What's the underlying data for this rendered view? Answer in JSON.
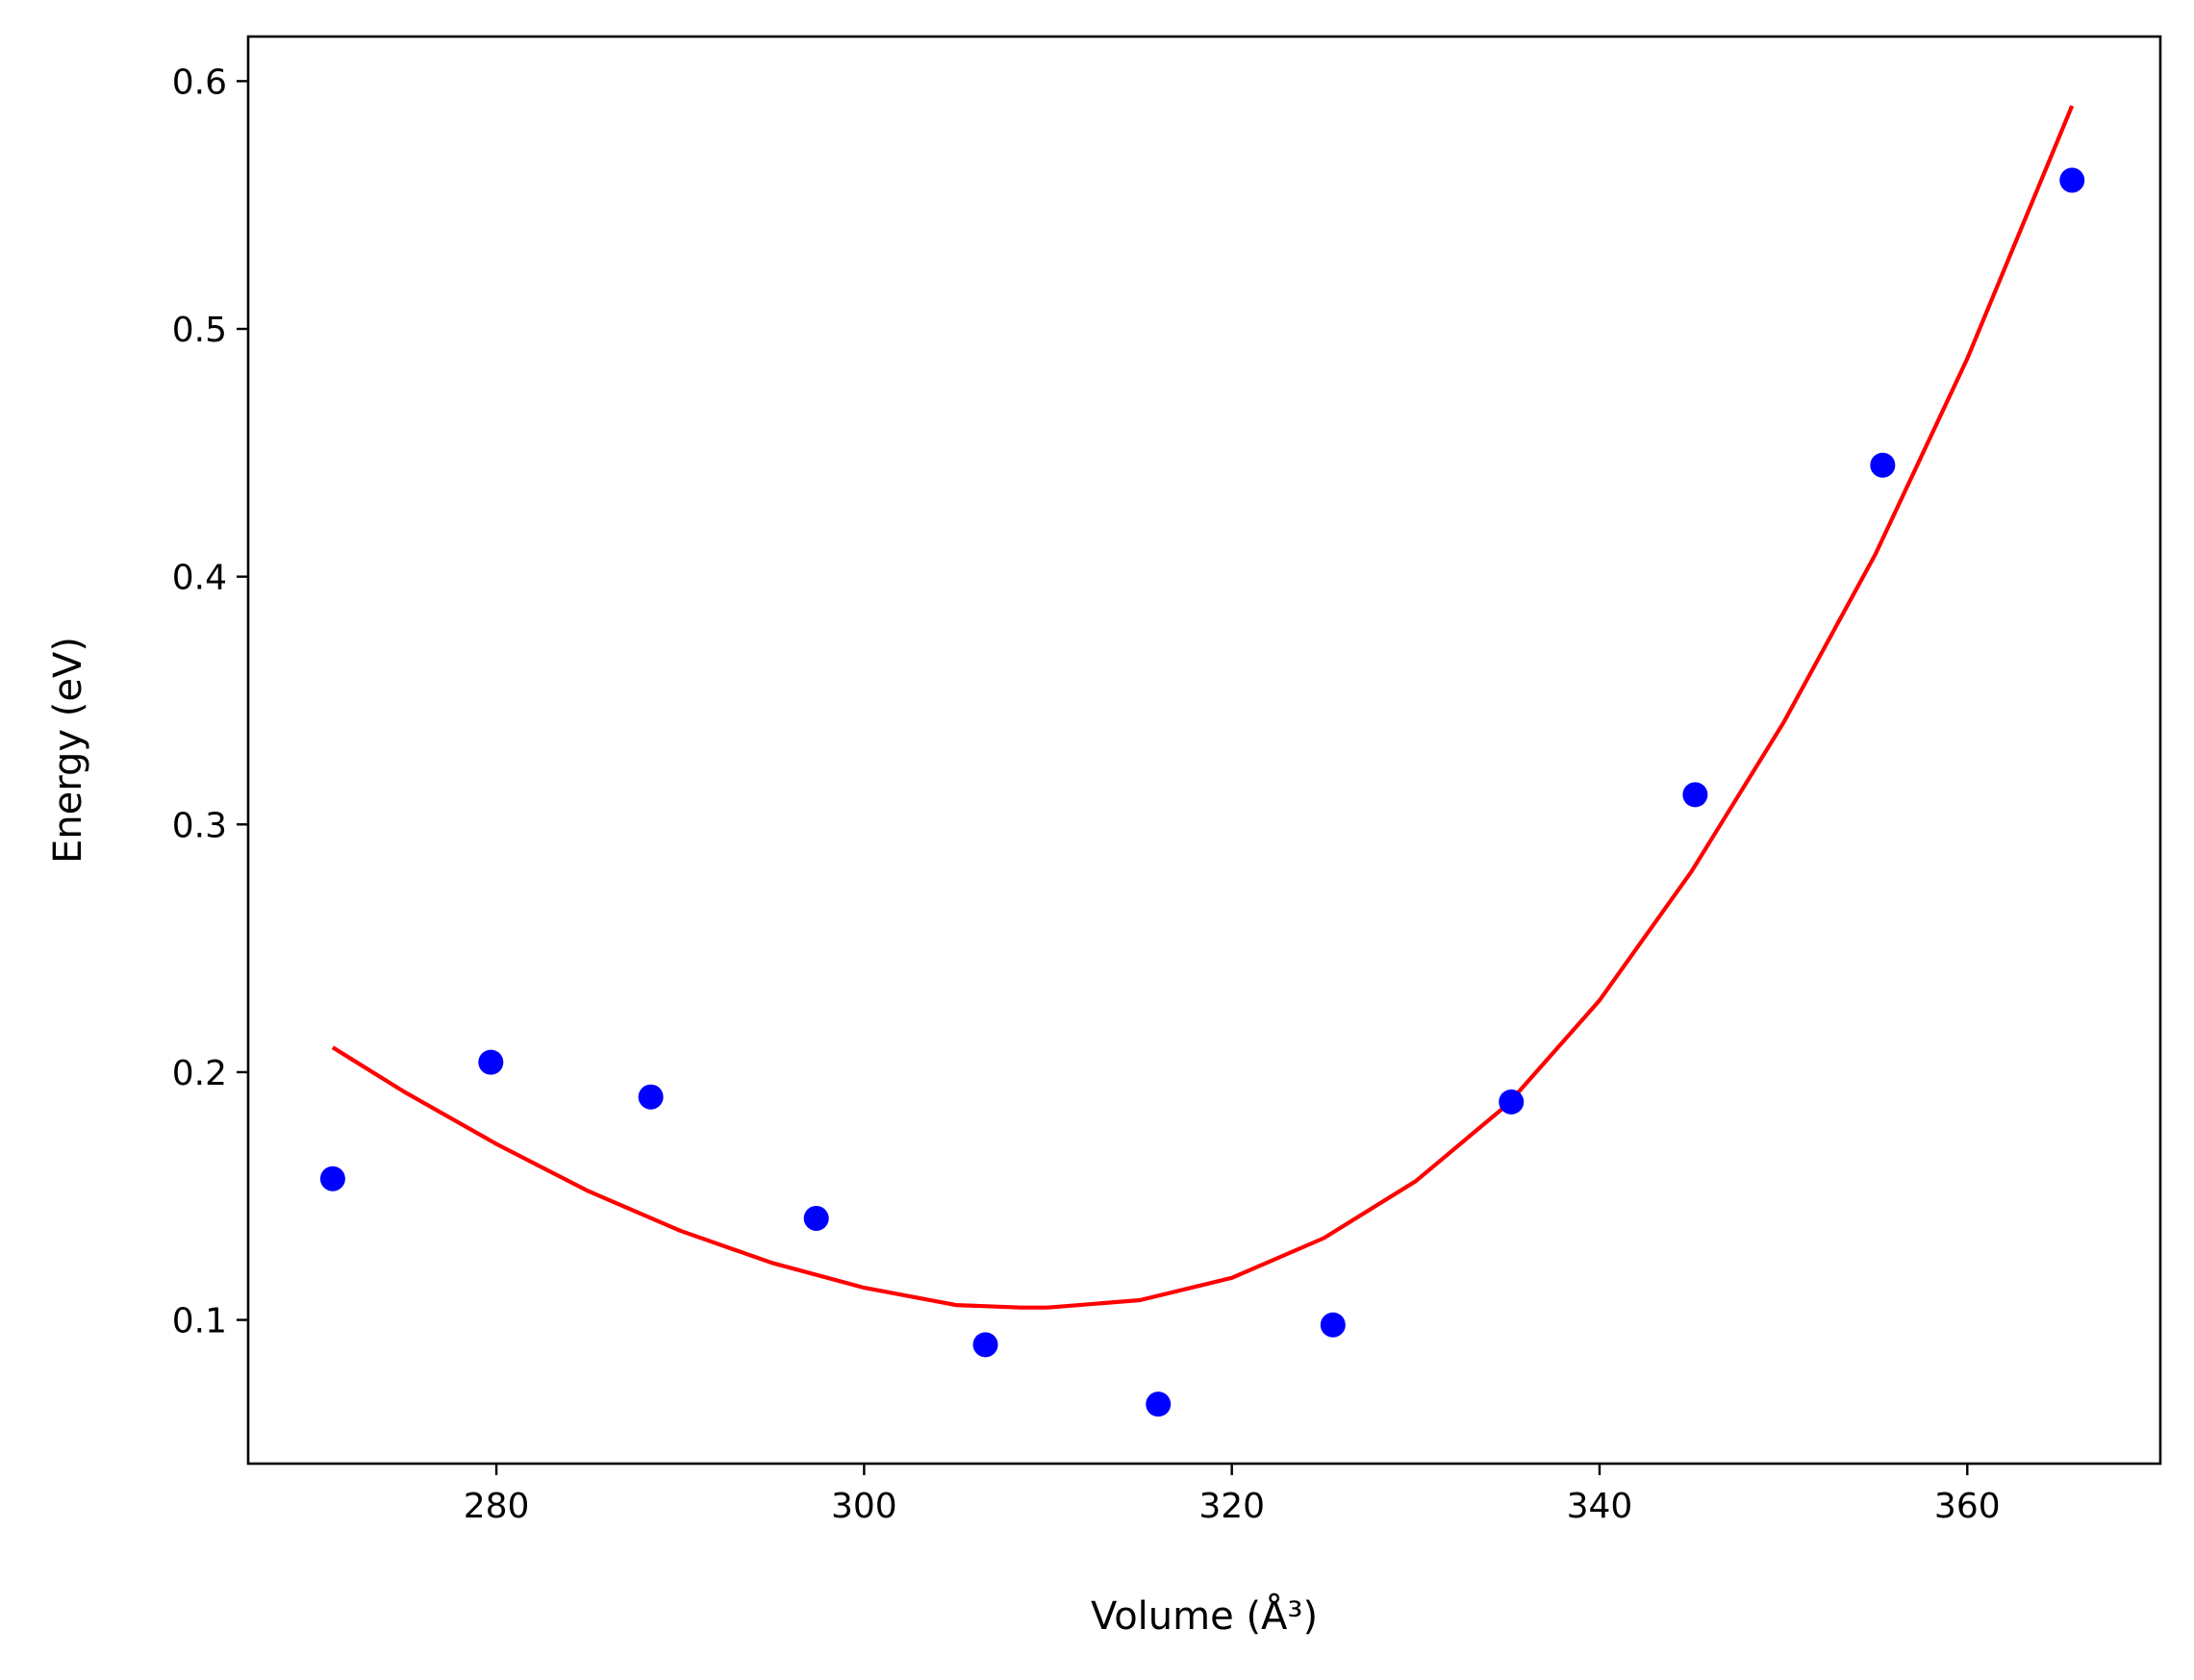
{
  "chart_data": {
    "type": "scatter",
    "title": "",
    "xlabel": "Volume (Å³)",
    "ylabel": "Energy (eV)",
    "xlim": [
      266.5,
      370.5
    ],
    "ylim": [
      0.042,
      0.618
    ],
    "xticks": [
      280,
      300,
      320,
      340,
      360
    ],
    "yticks": [
      0.1,
      0.2,
      0.3,
      0.4,
      0.5,
      0.6
    ],
    "xtick_labels": [
      "280",
      "300",
      "320",
      "340",
      "360"
    ],
    "ytick_labels": [
      "0.1",
      "0.2",
      "0.3",
      "0.4",
      "0.5",
      "0.6"
    ],
    "grid": false,
    "legend": null,
    "series": [
      {
        "kind": "scatter",
        "color": "#0000ff",
        "x": [
          271.1,
          279.7,
          288.4,
          297.4,
          306.6,
          316.0,
          325.5,
          335.2,
          345.2,
          355.4,
          365.7
        ],
        "y": [
          0.157,
          0.204,
          0.19,
          0.141,
          0.09,
          0.066,
          0.098,
          0.188,
          0.312,
          0.445,
          0.56
        ]
      },
      {
        "kind": "line",
        "color": "#ff0000",
        "x": [
          271.1,
          275,
          280,
          285,
          290,
          295,
          300,
          305,
          308.5,
          310,
          315,
          320,
          325,
          330,
          335,
          340,
          345,
          350,
          355,
          360,
          365.7
        ],
        "y": [
          0.21,
          0.192,
          0.171,
          0.152,
          0.136,
          0.123,
          0.113,
          0.106,
          0.105,
          0.105,
          0.108,
          0.117,
          0.133,
          0.156,
          0.187,
          0.229,
          0.281,
          0.341,
          0.409,
          0.488,
          0.59
        ]
      }
    ]
  }
}
